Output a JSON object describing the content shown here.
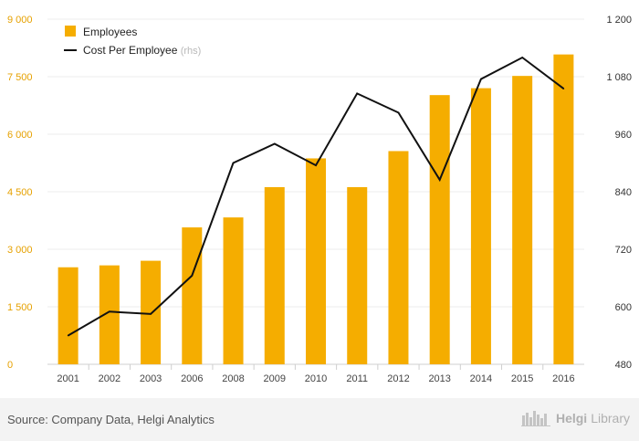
{
  "chart_data": {
    "type": "bar+line",
    "categories": [
      "2001",
      "2002",
      "2003",
      "2006",
      "2008",
      "2009",
      "2010",
      "2011",
      "2012",
      "2013",
      "2014",
      "2015",
      "2016"
    ],
    "series": [
      {
        "name": "Employees",
        "type": "bar",
        "axis": "left",
        "color": "#f5ad00",
        "values": [
          2530,
          2580,
          2700,
          3570,
          3830,
          4620,
          5370,
          4620,
          5560,
          7020,
          7200,
          7520,
          8080
        ]
      },
      {
        "name": "Cost Per Employee",
        "name_suffix": "(rhs)",
        "type": "line",
        "axis": "right",
        "color": "#111111",
        "values": [
          540,
          590,
          585,
          665,
          900,
          940,
          895,
          1045,
          1005,
          865,
          1075,
          1120,
          1055
        ]
      }
    ],
    "y_left": {
      "ticks": [
        "0",
        "1 500",
        "3 000",
        "4 500",
        "6 000",
        "7 500",
        "9 000"
      ],
      "values": [
        0,
        1500,
        3000,
        4500,
        6000,
        7500,
        9000
      ],
      "range": [
        0,
        9000
      ],
      "color": "#e6a100"
    },
    "y_right": {
      "ticks": [
        "480",
        "600",
        "720",
        "840",
        "960",
        "1 080",
        "1 200"
      ],
      "values": [
        480,
        600,
        720,
        840,
        960,
        1080,
        1200
      ],
      "range": [
        480,
        1200
      ],
      "color": "#333333"
    },
    "grid": true,
    "legend_position": "top-left"
  },
  "footer": {
    "source": "Source: Company Data, Helgi Analytics",
    "brand_first": "Helgi",
    "brand_second": "Library"
  }
}
